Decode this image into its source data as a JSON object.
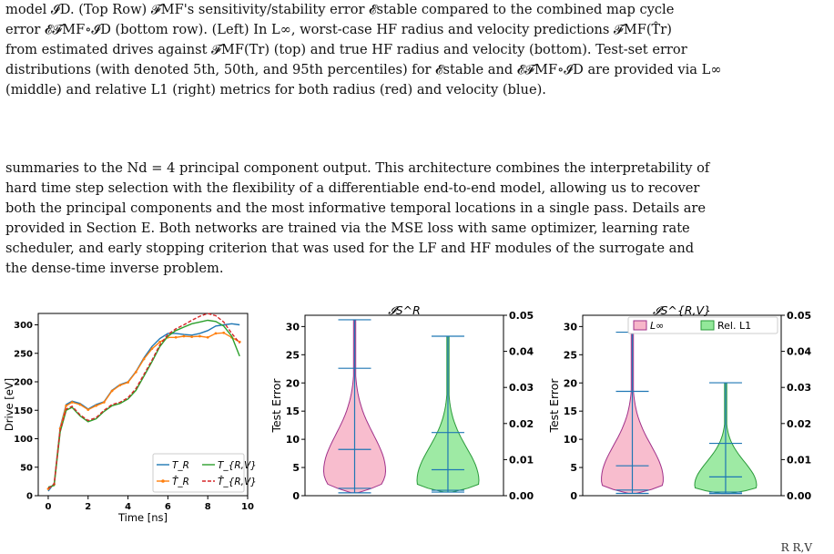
{
  "caption": {
    "lines": [
      "model 𝓘D. (Top Row) 𝓕MF's sensitivity/stability error 𝓔stable compared to the combined map cycle",
      "error 𝓔𝓕MF∘𝓘D (bottom row). (Left) In L∞, worst-case HF radius and velocity predictions 𝓕MF(T̂r)",
      "from estimated drives against 𝓕MF(Tr) (top) and true HF radius and velocity (bottom). Test-set error",
      "distributions (with denoted 5th, 50th, and 95th percentiles) for 𝓔stable and 𝓔𝓕MF∘𝓘D are provided via L∞",
      "(middle) and relative L1 (right) metrics for both radius (red) and velocity (blue)."
    ]
  },
  "body_paragraph": {
    "lines": [
      "summaries to the Nd = 4 principal component output. This architecture combines the interpretability of",
      "hard time step selection with the flexibility of a differentiable end-to-end model, allowing us to recover",
      "both the principal components and the most informative temporal locations in a single pass. Details are",
      "provided in Section E. Both networks are trained via the MSE loss with same optimizer, learning rate",
      "scheduler, and early stopping criterion that was used for the LF and HF modules of the surrogate and",
      "the dense-time inverse problem."
    ]
  },
  "footer_fragment": "R    R,V",
  "colors": {
    "blue": "#1f77b4",
    "orange": "#ff7f0e",
    "green": "#2ca02c",
    "red": "#d62728",
    "violin_pink": "#f7b6c9",
    "violin_pink_edge": "#a0308a",
    "violin_green": "#93e89a",
    "violin_green_edge": "#2a9a3a"
  },
  "chart_data": [
    {
      "type": "line",
      "xlabel": "Time [ns]",
      "ylabel": "Drive [eV]",
      "xlim": [
        -0.5,
        10
      ],
      "ylim": [
        0,
        320
      ],
      "xticks": [
        "0",
        "2",
        "4",
        "6",
        "8",
        "10"
      ],
      "yticks": [
        "0",
        "50",
        "100",
        "150",
        "200",
        "250",
        "300"
      ],
      "legend": {
        "placement": "lower-right",
        "entries": [
          "T_R",
          "T̂_R",
          "T_{R,V}",
          "T̂_{R,V}"
        ]
      },
      "x": [
        0,
        0.3,
        0.6,
        0.9,
        1.2,
        1.6,
        2.0,
        2.4,
        2.8,
        3.2,
        3.6,
        4.0,
        4.4,
        4.8,
        5.2,
        5.6,
        6.0,
        6.4,
        6.8,
        7.2,
        7.6,
        8.0,
        8.4,
        8.8,
        9.2,
        9.6
      ],
      "series": [
        {
          "name": "T_R",
          "color": "blue",
          "dash": "solid",
          "marker": "none",
          "values": [
            8,
            22,
            120,
            160,
            166,
            162,
            152,
            160,
            165,
            185,
            195,
            200,
            218,
            242,
            262,
            276,
            285,
            285,
            283,
            282,
            285,
            290,
            298,
            300,
            302,
            300
          ]
        },
        {
          "name": "T̂_R",
          "color": "orange",
          "dash": "solid",
          "marker": "dot",
          "values": [
            12,
            20,
            118,
            158,
            164,
            160,
            151,
            158,
            164,
            184,
            194,
            199,
            217,
            240,
            258,
            270,
            278,
            278,
            280,
            279,
            280,
            278,
            285,
            286,
            278,
            270
          ]
        },
        {
          "name": "T_{R,V}",
          "color": "green",
          "dash": "solid",
          "marker": "none",
          "values": [
            15,
            18,
            112,
            150,
            155,
            140,
            130,
            135,
            148,
            158,
            162,
            170,
            185,
            210,
            235,
            262,
            280,
            290,
            296,
            302,
            305,
            308,
            306,
            298,
            280,
            245
          ]
        },
        {
          "name": "T̂_{R,V}",
          "color": "red",
          "dash": "dashed",
          "marker": "none",
          "values": [
            13,
            20,
            115,
            152,
            157,
            142,
            132,
            137,
            150,
            160,
            164,
            172,
            188,
            213,
            238,
            265,
            283,
            293,
            300,
            308,
            315,
            320,
            316,
            305,
            285,
            268
          ]
        }
      ]
    },
    {
      "type": "violin",
      "title": "𝓘S^R",
      "ylabel": "Test Error",
      "ylim": [
        0,
        32
      ],
      "yticks": [
        "0",
        "5",
        "10",
        "15",
        "20",
        "25",
        "30"
      ],
      "y2lim": [
        0,
        0.05
      ],
      "y2ticks": [
        "0.00",
        "0.01",
        "0.02",
        "0.03",
        "0.04",
        "0.05"
      ],
      "violins": [
        {
          "color": "violin_pink",
          "axis": "left",
          "min": 0.5,
          "p5": 1.3,
          "p50": 8.2,
          "p95": 22.6,
          "max": 31.2
        },
        {
          "color": "violin_green",
          "axis": "right",
          "min": 0.001,
          "p5": 0.0015,
          "p50": 0.0072,
          "p95": 0.0175,
          "max": 0.0442
        }
      ]
    },
    {
      "type": "violin",
      "title": "𝓘S^{R,V}",
      "ylabel": "Test Error",
      "ylim": [
        0,
        32
      ],
      "yticks": [
        "0",
        "5",
        "10",
        "15",
        "20",
        "25",
        "30"
      ],
      "y2lim": [
        0,
        0.05
      ],
      "y2ticks": [
        "0.00",
        "0.01",
        "0.02",
        "0.03",
        "0.04",
        "0.05"
      ],
      "legend": {
        "placement": "top",
        "entries": [
          "L∞",
          "Rel. L1"
        ]
      },
      "violins": [
        {
          "color": "violin_pink",
          "axis": "left",
          "min": 0.4,
          "p5": 1.0,
          "p50": 5.3,
          "p95": 18.5,
          "max": 29.0
        },
        {
          "color": "violin_green",
          "axis": "right",
          "min": 0.0006,
          "p5": 0.001,
          "p50": 0.0052,
          "p95": 0.0145,
          "max": 0.0313
        }
      ]
    }
  ]
}
